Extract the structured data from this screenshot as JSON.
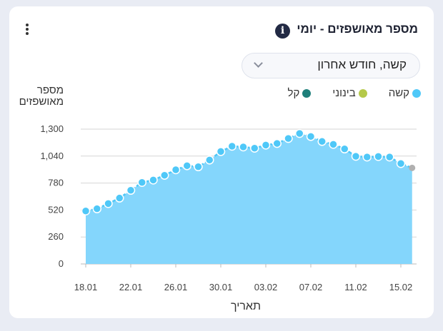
{
  "header": {
    "title": "מספר מאושפזים - יומי",
    "info_icon": "info-icon",
    "menu_icon": "kebab-menu-icon"
  },
  "filter": {
    "selected": "קשה, חודש אחרון"
  },
  "colors": {
    "severe": "#4fc8f8",
    "medium": "#b5c94a",
    "mild": "#1e7f7a",
    "fill": "#84d6fc",
    "last": "#b0b0b0"
  },
  "chart_data": {
    "type": "area",
    "title": "מספר מאושפזים - יומי",
    "xlabel": "תאריך",
    "ylabel": "מספר מאושפזים",
    "legend": [
      "קשה",
      "בינוני",
      "קל"
    ],
    "legend_position": "top-right",
    "ylim": [
      0,
      1300
    ],
    "yticks": [
      0,
      260,
      520,
      780,
      1040,
      1300
    ],
    "ytick_labels": [
      "0",
      "260",
      "520",
      "780",
      "1,040",
      "1,300"
    ],
    "xtick_labels": [
      "18.01",
      "22.01",
      "26.01",
      "30.01",
      "03.02",
      "07.02",
      "11.02",
      "15.02"
    ],
    "grid": true,
    "series": [
      {
        "name": "קשה",
        "values": [
          511,
          532,
          582,
          635,
          710,
          786,
          809,
          855,
          908,
          947,
          937,
          1002,
          1084,
          1135,
          1128,
          1116,
          1146,
          1162,
          1210,
          1258,
          1229,
          1181,
          1153,
          1109,
          1038,
          1031,
          1036,
          1031,
          968,
          926
        ]
      }
    ]
  }
}
